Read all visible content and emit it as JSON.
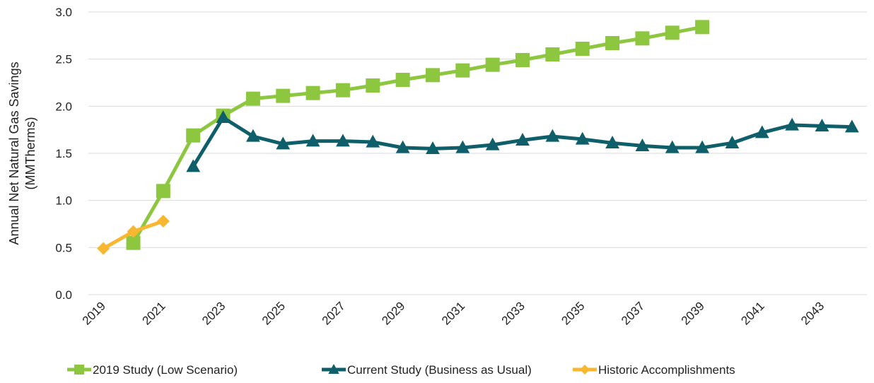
{
  "chart_data": {
    "type": "line",
    "title": "",
    "xlabel": "",
    "ylabel_lines": [
      "Annual Net Natural Gas Savings",
      "(MMTherms)"
    ],
    "ylim": [
      0,
      3.0
    ],
    "yticks": [
      "0.0",
      "0.5",
      "1.0",
      "1.5",
      "2.0",
      "2.5",
      "3.0"
    ],
    "xlim": [
      2019,
      2044
    ],
    "xticks": [
      "2019",
      "2021",
      "2023",
      "2025",
      "2027",
      "2029",
      "2031",
      "2033",
      "2035",
      "2037",
      "2039",
      "2041",
      "2043"
    ],
    "grid": "horizontal",
    "legend_position": "bottom",
    "series": [
      {
        "name": "2019 Study (Low Scenario)",
        "color": "#8dc63f",
        "marker": "square",
        "x": [
          2020,
          2021,
          2022,
          2023,
          2024,
          2025,
          2026,
          2027,
          2028,
          2029,
          2030,
          2031,
          2032,
          2033,
          2034,
          2035,
          2036,
          2037,
          2038,
          2039
        ],
        "values": [
          0.55,
          1.1,
          1.69,
          1.9,
          2.08,
          2.11,
          2.14,
          2.17,
          2.22,
          2.28,
          2.33,
          2.38,
          2.44,
          2.49,
          2.55,
          2.61,
          2.67,
          2.72,
          2.78,
          2.84
        ]
      },
      {
        "name": "Current Study (Business as Usual)",
        "color": "#0f5f6b",
        "marker": "triangle",
        "x": [
          2022,
          2023,
          2024,
          2025,
          2026,
          2027,
          2028,
          2029,
          2030,
          2031,
          2032,
          2033,
          2034,
          2035,
          2036,
          2037,
          2038,
          2039,
          2040,
          2041,
          2042,
          2043,
          2044
        ],
        "values": [
          1.36,
          1.88,
          1.68,
          1.6,
          1.63,
          1.63,
          1.62,
          1.56,
          1.55,
          1.56,
          1.59,
          1.64,
          1.68,
          1.65,
          1.61,
          1.58,
          1.56,
          1.56,
          1.61,
          1.72,
          1.8,
          1.79,
          1.78
        ]
      },
      {
        "name": "Historic Accomplishments",
        "color": "#f7b731",
        "marker": "diamond",
        "x": [
          2019,
          2020,
          2021
        ],
        "values": [
          0.49,
          0.67,
          0.78
        ]
      }
    ]
  }
}
